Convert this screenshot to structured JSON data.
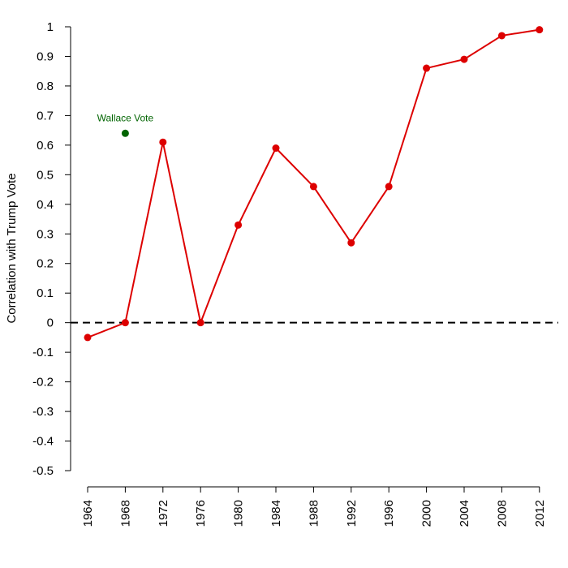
{
  "chart_data": {
    "type": "line",
    "ylabel": "Correlation with Trump Vote",
    "ylim": [
      -0.5,
      1
    ],
    "yticks": [
      "1",
      "0.9",
      "0.8",
      "0.7",
      "0.6",
      "0.5",
      "0.4",
      "0.3",
      "0.2",
      "0.1",
      "0",
      "-0.1",
      "-0.2",
      "-0.3",
      "-0.4",
      "-0.5"
    ],
    "x": [
      "1964",
      "1968",
      "1972",
      "1976",
      "1980",
      "1984",
      "1988",
      "1992",
      "1996",
      "2000",
      "2004",
      "2008",
      "2012"
    ],
    "series": [
      {
        "values": [
          -0.05,
          0.0,
          0.61,
          0.0,
          0.33,
          0.59,
          0.46,
          0.27,
          0.46,
          0.86,
          0.89,
          0.97,
          0.99
        ],
        "color": "#dd0000"
      }
    ],
    "annotation_points": [
      {
        "label": "Wallace Vote",
        "x": "1968",
        "y": 0.64,
        "color": "#006400"
      }
    ],
    "reference_line": {
      "y": 0,
      "style": "dashed",
      "color": "#000000"
    },
    "grid": false
  }
}
